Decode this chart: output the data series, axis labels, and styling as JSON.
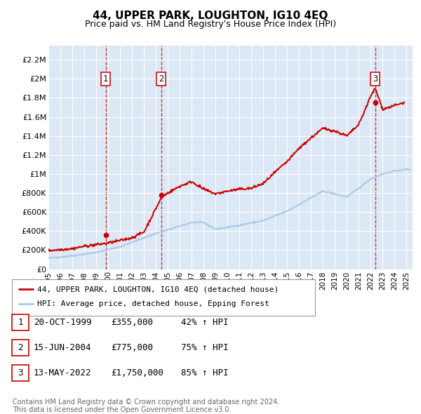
{
  "title": "44, UPPER PARK, LOUGHTON, IG10 4EQ",
  "subtitle": "Price paid vs. HM Land Registry's House Price Index (HPI)",
  "background_color": "#ffffff",
  "chart_bg_color": "#dce8f5",
  "ylabel_ticks": [
    "£0",
    "£200K",
    "£400K",
    "£600K",
    "£800K",
    "£1M",
    "£1.2M",
    "£1.4M",
    "£1.6M",
    "£1.8M",
    "£2M",
    "£2.2M"
  ],
  "ytick_values": [
    0,
    200000,
    400000,
    600000,
    800000,
    1000000,
    1200000,
    1400000,
    1600000,
    1800000,
    2000000,
    2200000
  ],
  "ymax": 2350000,
  "xmin": 1995.0,
  "xmax": 2025.5,
  "xtick_labels": [
    "1995",
    "1996",
    "1997",
    "1998",
    "1999",
    "2000",
    "2001",
    "2002",
    "2003",
    "2004",
    "2005",
    "2006",
    "2007",
    "2008",
    "2009",
    "2010",
    "2011",
    "2012",
    "2013",
    "2014",
    "2015",
    "2016",
    "2017",
    "2018",
    "2019",
    "2020",
    "2021",
    "2022",
    "2023",
    "2024",
    "2025"
  ],
  "xtick_positions": [
    1995,
    1996,
    1997,
    1998,
    1999,
    2000,
    2001,
    2002,
    2003,
    2004,
    2005,
    2006,
    2007,
    2008,
    2009,
    2010,
    2011,
    2012,
    2013,
    2014,
    2015,
    2016,
    2017,
    2018,
    2019,
    2020,
    2021,
    2022,
    2023,
    2024,
    2025
  ],
  "hpi_color": "#a8c8e8",
  "price_color": "#cc0000",
  "vline_color": "#cc0000",
  "sales": [
    {
      "year": 1999.8,
      "price": 355000,
      "label": "1"
    },
    {
      "year": 2004.46,
      "price": 775000,
      "label": "2"
    },
    {
      "year": 2022.37,
      "price": 1750000,
      "label": "3"
    }
  ],
  "legend_house_label": "44, UPPER PARK, LOUGHTON, IG10 4EQ (detached house)",
  "legend_hpi_label": "HPI: Average price, detached house, Epping Forest",
  "sale_rows": [
    {
      "num": "1",
      "date": "20-OCT-1999",
      "price": "£355,000",
      "hpi": "42% ↑ HPI"
    },
    {
      "num": "2",
      "date": "15-JUN-2004",
      "price": "£775,000",
      "hpi": "75% ↑ HPI"
    },
    {
      "num": "3",
      "date": "13-MAY-2022",
      "price": "£1,750,000",
      "hpi": "85% ↑ HPI"
    }
  ],
  "footnote_line1": "Contains HM Land Registry data © Crown copyright and database right 2024.",
  "footnote_line2": "This data is licensed under the Open Government Licence v3.0."
}
